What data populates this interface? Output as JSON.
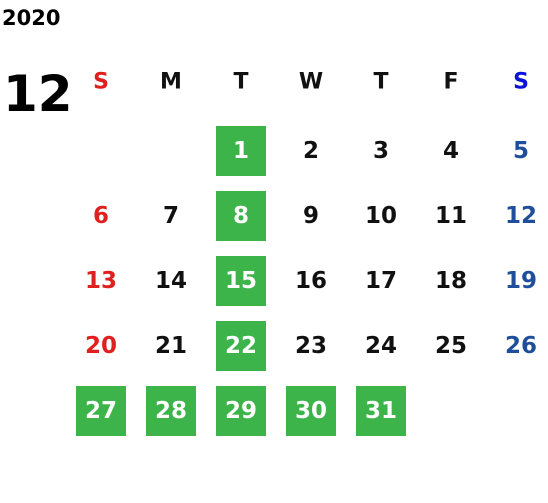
{
  "year": "2020",
  "month": "12",
  "weekdays": [
    "S",
    "M",
    "T",
    "W",
    "T",
    "F",
    "S"
  ],
  "weeks": [
    [
      null,
      null,
      {
        "day": 1,
        "highlight": true
      },
      {
        "day": 2
      },
      {
        "day": 3
      },
      {
        "day": 4
      },
      {
        "day": 5
      }
    ],
    [
      {
        "day": 6
      },
      {
        "day": 7
      },
      {
        "day": 8,
        "highlight": true
      },
      {
        "day": 9
      },
      {
        "day": 10
      },
      {
        "day": 11
      },
      {
        "day": 12
      }
    ],
    [
      {
        "day": 13
      },
      {
        "day": 14
      },
      {
        "day": 15,
        "highlight": true
      },
      {
        "day": 16
      },
      {
        "day": 17
      },
      {
        "day": 18
      },
      {
        "day": 19
      }
    ],
    [
      {
        "day": 20
      },
      {
        "day": 21
      },
      {
        "day": 22,
        "highlight": true
      },
      {
        "day": 23
      },
      {
        "day": 24
      },
      {
        "day": 25
      },
      {
        "day": 26
      }
    ],
    [
      {
        "day": 27,
        "highlight": true
      },
      {
        "day": 28,
        "highlight": true
      },
      {
        "day": 29,
        "highlight": true
      },
      {
        "day": 30,
        "highlight": true
      },
      {
        "day": 31,
        "highlight": true
      },
      null,
      null
    ]
  ]
}
